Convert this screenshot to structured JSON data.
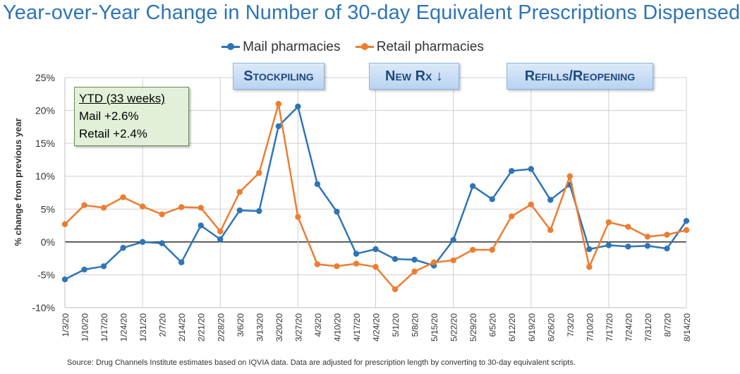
{
  "chart_data": {
    "type": "line",
    "title": "Year-over-Year Change in Number of 30-day Equivalent Prescriptions Dispensed",
    "ylabel": "% change from previous year",
    "ylim": [
      -10,
      25
    ],
    "yticks": [
      -10,
      -5,
      0,
      5,
      10,
      15,
      20,
      25
    ],
    "ytick_labels": [
      "-10%",
      "-5%",
      "0%",
      "5%",
      "10%",
      "15%",
      "20%",
      "25%"
    ],
    "grid": true,
    "legend_position": "top-center",
    "categories": [
      "1/3/20",
      "1/10/20",
      "1/17/20",
      "1/24/20",
      "1/31/20",
      "2/7/20",
      "2/14/20",
      "2/21/20",
      "2/28/20",
      "3/6/20",
      "3/13/20",
      "3/20/20",
      "3/27/20",
      "4/3/20",
      "4/10/20",
      "4/17/20",
      "4/24/20",
      "5/1/20",
      "5/8/20",
      "5/15/20",
      "5/22/20",
      "5/29/20",
      "6/5/20",
      "6/12/20",
      "6/19/20",
      "6/26/20",
      "7/3/20",
      "7/10/20",
      "7/17/20",
      "7/24/20",
      "7/31/20",
      "8/7/20",
      "8/14/20"
    ],
    "series": [
      {
        "name": "Mail pharmacies",
        "color": "#2e75b6",
        "values": [
          -5.7,
          -4.2,
          -3.7,
          -0.9,
          0.0,
          -0.2,
          -3.1,
          2.5,
          0.4,
          4.8,
          4.7,
          17.6,
          20.6,
          8.8,
          4.6,
          -1.8,
          -1.1,
          -2.6,
          -2.7,
          -3.6,
          0.3,
          8.5,
          6.5,
          10.8,
          11.1,
          6.4,
          8.7,
          -1.1,
          -0.5,
          -0.7,
          -0.6,
          -1.0,
          3.2
        ]
      },
      {
        "name": "Retail pharmacies",
        "color": "#ed7d31",
        "values": [
          2.7,
          5.6,
          5.2,
          6.8,
          5.4,
          4.2,
          5.3,
          5.2,
          1.6,
          7.6,
          10.5,
          21.0,
          3.8,
          -3.4,
          -3.7,
          -3.3,
          -3.8,
          -7.2,
          -4.5,
          -3.1,
          -2.8,
          -1.2,
          -1.2,
          3.9,
          5.7,
          1.8,
          10.0,
          -3.8,
          3.0,
          2.3,
          0.8,
          1.1,
          1.8
        ]
      }
    ],
    "annotations": [
      {
        "text": "Stockpiling"
      },
      {
        "text": "New Rx ↓"
      },
      {
        "text": "Refills/Reopening"
      }
    ],
    "ytd_box": {
      "title": "YTD (33 weeks)",
      "lines": [
        "Mail +2.6%",
        "Retail +2.4%"
      ]
    },
    "source": "Source: Drug Channels Institute estimates based on IQVIA data.  Data are adjusted for prescription length by converting to 30-day equivalent scripts."
  }
}
